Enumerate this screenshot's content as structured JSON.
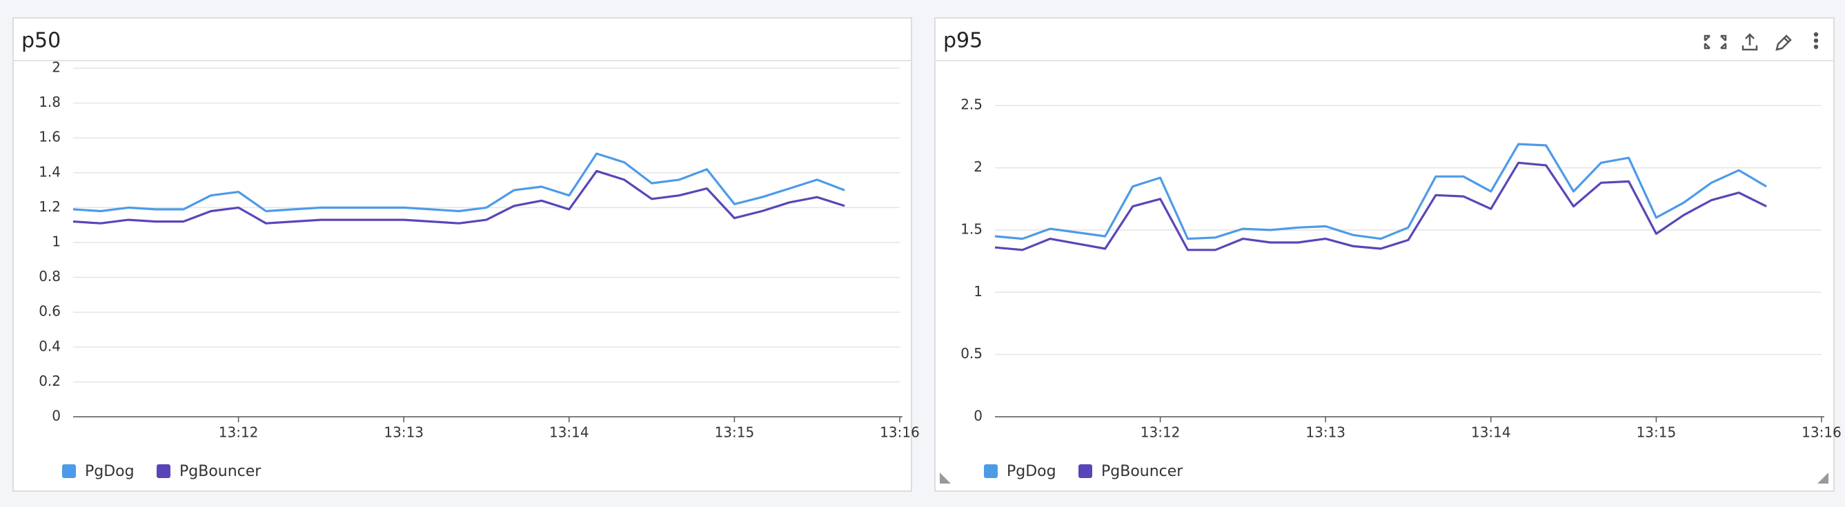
{
  "chart_data": [
    {
      "type": "line",
      "title": "p50",
      "x": [
        11.0,
        11.1667,
        11.3333,
        11.5,
        11.6667,
        11.8333,
        12.0,
        12.1667,
        12.3333,
        12.5,
        12.6667,
        12.8333,
        13.0,
        13.1667,
        13.3333,
        13.5,
        13.6667,
        13.8333,
        14.0,
        14.1667,
        14.3333,
        14.5,
        14.6667,
        14.8333,
        15.0,
        15.1667,
        15.3333,
        15.5,
        15.6667
      ],
      "series": [
        {
          "name": "PgDog",
          "color": "#4c9be8",
          "values": [
            1.19,
            1.18,
            1.2,
            1.19,
            1.19,
            1.27,
            1.29,
            1.18,
            1.19,
            1.2,
            1.2,
            1.2,
            1.2,
            1.19,
            1.18,
            1.2,
            1.3,
            1.32,
            1.27,
            1.51,
            1.46,
            1.34,
            1.36,
            1.42,
            1.22,
            1.26,
            1.31,
            1.36,
            1.3
          ]
        },
        {
          "name": "PgBouncer",
          "color": "#5a45b8",
          "values": [
            1.12,
            1.11,
            1.13,
            1.12,
            1.12,
            1.18,
            1.2,
            1.11,
            1.12,
            1.13,
            1.13,
            1.13,
            1.13,
            1.12,
            1.11,
            1.13,
            1.21,
            1.24,
            1.19,
            1.41,
            1.36,
            1.25,
            1.27,
            1.31,
            1.14,
            1.18,
            1.23,
            1.26,
            1.21
          ]
        }
      ],
      "xlim": [
        11,
        16
      ],
      "xticks": [
        {
          "value": 12,
          "label": "13:12"
        },
        {
          "value": 13,
          "label": "13:13"
        },
        {
          "value": 14,
          "label": "13:14"
        },
        {
          "value": 15,
          "label": "13:15"
        },
        {
          "value": 16,
          "label": "13:16"
        }
      ],
      "ylim": [
        0,
        2
      ],
      "yticks": [
        0,
        0.2,
        0.4,
        0.6,
        0.8,
        1,
        1.2,
        1.4,
        1.6,
        1.8,
        2
      ],
      "grid": true
    },
    {
      "type": "line",
      "title": "p95",
      "x": [
        11.0,
        11.1667,
        11.3333,
        11.5,
        11.6667,
        11.8333,
        12.0,
        12.1667,
        12.3333,
        12.5,
        12.6667,
        12.8333,
        13.0,
        13.1667,
        13.3333,
        13.5,
        13.6667,
        13.8333,
        14.0,
        14.1667,
        14.3333,
        14.5,
        14.6667,
        14.8333,
        15.0,
        15.1667,
        15.3333,
        15.5,
        15.6667
      ],
      "series": [
        {
          "name": "PgDog",
          "color": "#4c9be8",
          "values": [
            1.45,
            1.43,
            1.51,
            1.48,
            1.45,
            1.85,
            1.92,
            1.43,
            1.44,
            1.51,
            1.5,
            1.52,
            1.53,
            1.46,
            1.43,
            1.52,
            1.93,
            1.93,
            1.81,
            2.19,
            2.18,
            1.81,
            2.04,
            2.08,
            1.6,
            1.72,
            1.88,
            1.98,
            1.85
          ]
        },
        {
          "name": "PgBouncer",
          "color": "#5a45b8",
          "values": [
            1.36,
            1.34,
            1.43,
            1.39,
            1.35,
            1.69,
            1.75,
            1.34,
            1.34,
            1.43,
            1.4,
            1.4,
            1.43,
            1.37,
            1.35,
            1.42,
            1.78,
            1.77,
            1.67,
            2.04,
            2.02,
            1.69,
            1.88,
            1.89,
            1.47,
            1.62,
            1.74,
            1.8,
            1.69
          ]
        }
      ],
      "xlim": [
        11,
        16
      ],
      "xticks": [
        {
          "value": 12,
          "label": "13:12"
        },
        {
          "value": 13,
          "label": "13:13"
        },
        {
          "value": 14,
          "label": "13:14"
        },
        {
          "value": 15,
          "label": "13:15"
        },
        {
          "value": 16,
          "label": "13:16"
        }
      ],
      "ylim": [
        0,
        2.8
      ],
      "yticks": [
        0,
        0.5,
        1,
        1.5,
        2,
        2.5
      ],
      "grid": true
    }
  ]
}
